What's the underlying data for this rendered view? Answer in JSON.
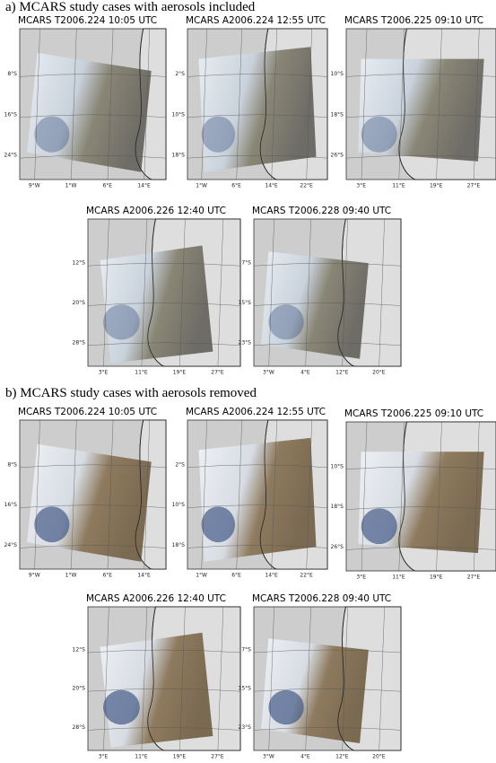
{
  "sections": [
    {
      "title": "a) MCARS study cases with aerosols included",
      "panels": [
        {
          "title": "MCARS T2006.224 10:05 UTC",
          "lat_labels": [
            "8°S",
            "16°S",
            "24°S"
          ],
          "lon_labels": [
            "9°W",
            "1°W",
            "6°E",
            "14°E"
          ]
        },
        {
          "title": "MCARS A2006.224 12:55 UTC",
          "lat_labels": [
            "2°S",
            "10°S",
            "18°S"
          ],
          "lon_labels": [
            "1°W",
            "6°E",
            "14°E",
            "22°E"
          ]
        },
        {
          "title": "MCARS T2006.225 09:10 UTC",
          "lat_labels": [
            "10°S",
            "18°S",
            "26°S"
          ],
          "lon_labels": [
            "3°E",
            "11°E",
            "19°E",
            "27°E"
          ]
        },
        {
          "title": "MCARS A2006.226 12:40 UTC",
          "lat_labels": [
            "12°S",
            "20°S",
            "28°S"
          ],
          "lon_labels": [
            "3°E",
            "11°E",
            "19°E",
            "27°E"
          ]
        },
        {
          "title": "MCARS T2006.228 09:40 UTC",
          "lat_labels": [
            "7°S",
            "15°S",
            "23°S"
          ],
          "lon_labels": [
            "3°W",
            "4°E",
            "12°E",
            "20°E"
          ]
        }
      ]
    },
    {
      "title": "b) MCARS study cases with aerosols removed",
      "panels": [
        {
          "title": "MCARS T2006.224 10:05 UTC",
          "lat_labels": [
            "8°S",
            "16°S",
            "24°S"
          ],
          "lon_labels": [
            "9°W",
            "1°W",
            "6°E",
            "14°E"
          ]
        },
        {
          "title": "MCARS A2006.224 12:55 UTC",
          "lat_labels": [
            "2°S",
            "10°S",
            "18°S"
          ],
          "lon_labels": [
            "1°W",
            "6°E",
            "14°E",
            "22°E"
          ]
        },
        {
          "title": "MCARS T2006.225 09:10 UTC",
          "lat_labels": [
            "10°S",
            "18°S",
            "26°S"
          ],
          "lon_labels": [
            "3°E",
            "11°E",
            "19°E",
            "27°E"
          ]
        },
        {
          "title": "MCARS A2006.226 12:40 UTC",
          "lat_labels": [
            "12°S",
            "20°S",
            "28°S"
          ],
          "lon_labels": [
            "3°E",
            "11°E",
            "19°E",
            "27°E"
          ]
        },
        {
          "title": "MCARS T2006.228 09:40 UTC",
          "lat_labels": [
            "7°S",
            "15°S",
            "23°S"
          ],
          "lon_labels": [
            "3°W",
            "4°E",
            "12°E",
            "20°E"
          ]
        }
      ]
    }
  ]
}
